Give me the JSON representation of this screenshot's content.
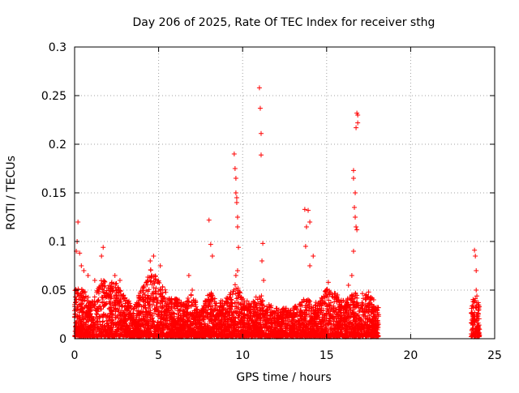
{
  "chart_data": {
    "type": "scatter",
    "title": "Day 206 of 2025, Rate Of TEC Index for receiver sthg",
    "xlabel": "GPS time / hours",
    "ylabel": "ROTI / TECUs",
    "xlim": [
      0,
      25
    ],
    "ylim": [
      0,
      0.3
    ],
    "grid": true,
    "x_ticks": [
      0,
      5,
      10,
      15,
      20,
      25
    ],
    "x_tick_labels": [
      "0",
      "5",
      "10",
      "15",
      "20",
      "25"
    ],
    "y_ticks": [
      0,
      0.05,
      0.1,
      0.15,
      0.2,
      0.25,
      0.3
    ],
    "y_tick_labels": [
      "0",
      "0.05",
      "0.1",
      "0.15",
      "0.2",
      "0.25",
      "0.3"
    ],
    "marker": "plus",
    "marker_color": "#ff0000",
    "series": [
      {
        "name": "ROTI",
        "points": [
          [
            0.1,
            0.09
          ],
          [
            0.15,
            0.1
          ],
          [
            0.2,
            0.12
          ],
          [
            0.3,
            0.088
          ],
          [
            0.4,
            0.075
          ],
          [
            0.55,
            0.07
          ],
          [
            0.8,
            0.065
          ],
          [
            1.2,
            0.06
          ],
          [
            1.6,
            0.085
          ],
          [
            1.7,
            0.094
          ],
          [
            2.4,
            0.065
          ],
          [
            2.7,
            0.06
          ],
          [
            4.5,
            0.08
          ],
          [
            4.7,
            0.085
          ],
          [
            5.1,
            0.075
          ],
          [
            6.8,
            0.065
          ],
          [
            7.0,
            0.05
          ],
          [
            8.0,
            0.122
          ],
          [
            8.1,
            0.097
          ],
          [
            8.2,
            0.085
          ],
          [
            9.5,
            0.19
          ],
          [
            9.55,
            0.175
          ],
          [
            9.6,
            0.165
          ],
          [
            9.6,
            0.15
          ],
          [
            9.65,
            0.145
          ],
          [
            9.65,
            0.14
          ],
          [
            9.7,
            0.125
          ],
          [
            9.7,
            0.115
          ],
          [
            9.75,
            0.094
          ],
          [
            9.7,
            0.07
          ],
          [
            9.6,
            0.065
          ],
          [
            11.0,
            0.258
          ],
          [
            11.05,
            0.237
          ],
          [
            11.1,
            0.211
          ],
          [
            11.1,
            0.189
          ],
          [
            11.2,
            0.098
          ],
          [
            11.15,
            0.08
          ],
          [
            11.25,
            0.06
          ],
          [
            13.7,
            0.133
          ],
          [
            13.8,
            0.115
          ],
          [
            13.9,
            0.132
          ],
          [
            14.0,
            0.12
          ],
          [
            13.75,
            0.095
          ],
          [
            14.2,
            0.085
          ],
          [
            14.0,
            0.075
          ],
          [
            15.1,
            0.058
          ],
          [
            16.3,
            0.055
          ],
          [
            16.5,
            0.065
          ],
          [
            16.6,
            0.173
          ],
          [
            16.6,
            0.165
          ],
          [
            16.7,
            0.15
          ],
          [
            16.65,
            0.135
          ],
          [
            16.7,
            0.125
          ],
          [
            16.75,
            0.115
          ],
          [
            16.8,
            0.112
          ],
          [
            16.8,
            0.232
          ],
          [
            16.85,
            0.23
          ],
          [
            16.85,
            0.222
          ],
          [
            16.75,
            0.217
          ],
          [
            16.6,
            0.09
          ],
          [
            17.5,
            0.048
          ],
          [
            17.8,
            0.04
          ],
          [
            18.0,
            0.03
          ],
          [
            23.8,
            0.091
          ],
          [
            23.85,
            0.085
          ],
          [
            23.9,
            0.07
          ],
          [
            23.9,
            0.05
          ],
          [
            24.0,
            0.035
          ],
          [
            23.95,
            0.02
          ],
          [
            23.85,
            0.01
          ]
        ]
      }
    ],
    "dense_band": {
      "description": "continuous dense cluster of low ROTI values",
      "segments": [
        {
          "x_start": 0.0,
          "x_end": 18.1,
          "typical_max": 0.04
        },
        {
          "x_start": 23.6,
          "x_end": 24.1,
          "typical_max": 0.04
        }
      ],
      "envelope": [
        [
          0.0,
          0.05
        ],
        [
          0.5,
          0.05
        ],
        [
          1.0,
          0.035
        ],
        [
          1.6,
          0.06
        ],
        [
          2.5,
          0.055
        ],
        [
          3.5,
          0.03
        ],
        [
          4.5,
          0.07
        ],
        [
          5.0,
          0.06
        ],
        [
          5.5,
          0.045
        ],
        [
          6.5,
          0.035
        ],
        [
          7.0,
          0.045
        ],
        [
          7.5,
          0.025
        ],
        [
          8.0,
          0.05
        ],
        [
          8.5,
          0.035
        ],
        [
          9.0,
          0.04
        ],
        [
          9.6,
          0.055
        ],
        [
          10.0,
          0.04
        ],
        [
          10.5,
          0.035
        ],
        [
          11.0,
          0.045
        ],
        [
          11.5,
          0.035
        ],
        [
          12.0,
          0.03
        ],
        [
          13.0,
          0.03
        ],
        [
          13.7,
          0.04
        ],
        [
          14.5,
          0.035
        ],
        [
          15.0,
          0.05
        ],
        [
          16.0,
          0.04
        ],
        [
          16.7,
          0.045
        ],
        [
          17.5,
          0.045
        ],
        [
          18.1,
          0.03
        ],
        [
          23.6,
          0.035
        ],
        [
          23.9,
          0.045
        ],
        [
          24.1,
          0.03
        ]
      ]
    }
  }
}
